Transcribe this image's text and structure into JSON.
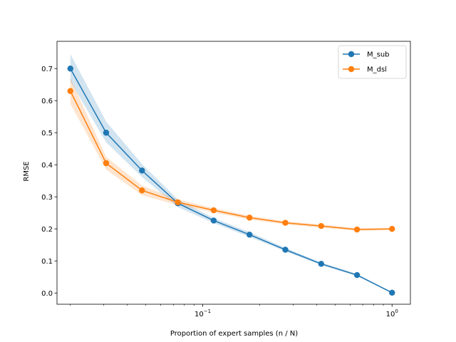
{
  "chart_data": {
    "type": "line",
    "title": "",
    "xlabel": "Proportion of expert samples (n / N)",
    "ylabel": "RMSE",
    "xscale": "log",
    "xlim": [
      0.017,
      1.25
    ],
    "ylim": [
      -0.035,
      0.785
    ],
    "x": [
      0.02,
      0.0309,
      0.0478,
      0.0739,
      0.1143,
      0.1767,
      0.2732,
      0.4224,
      0.6531,
      1.0
    ],
    "x_ticks": [
      {
        "value": 0.1,
        "base": "10",
        "exp": "−1"
      },
      {
        "value": 1.0,
        "base": "10",
        "exp": "0"
      }
    ],
    "y_ticks": [
      0.0,
      0.1,
      0.2,
      0.3,
      0.4,
      0.5,
      0.6,
      0.7
    ],
    "y_tick_labels": [
      "0.0",
      "0.1",
      "0.2",
      "0.3",
      "0.4",
      "0.5",
      "0.6",
      "0.7"
    ],
    "grid": false,
    "legend_position": "top-right",
    "series": [
      {
        "name": "M_sub",
        "color": "#1f77b4",
        "values": [
          0.7,
          0.5,
          0.382,
          0.28,
          0.226,
          0.182,
          0.135,
          0.091,
          0.056,
          0.001
        ],
        "lower": [
          0.66,
          0.47,
          0.362,
          0.268,
          0.218,
          0.175,
          0.13,
          0.087,
          0.053,
          0.0
        ],
        "upper": [
          0.745,
          0.535,
          0.402,
          0.292,
          0.234,
          0.19,
          0.141,
          0.095,
          0.06,
          0.003
        ]
      },
      {
        "name": "M_dsl",
        "color": "#ff7f0e",
        "values": [
          0.63,
          0.405,
          0.32,
          0.283,
          0.258,
          0.235,
          0.219,
          0.209,
          0.198,
          0.2
        ],
        "lower": [
          0.59,
          0.385,
          0.305,
          0.274,
          0.251,
          0.229,
          0.214,
          0.204,
          0.194,
          0.196
        ],
        "upper": [
          0.67,
          0.425,
          0.335,
          0.292,
          0.265,
          0.241,
          0.224,
          0.214,
          0.202,
          0.204
        ]
      }
    ]
  }
}
